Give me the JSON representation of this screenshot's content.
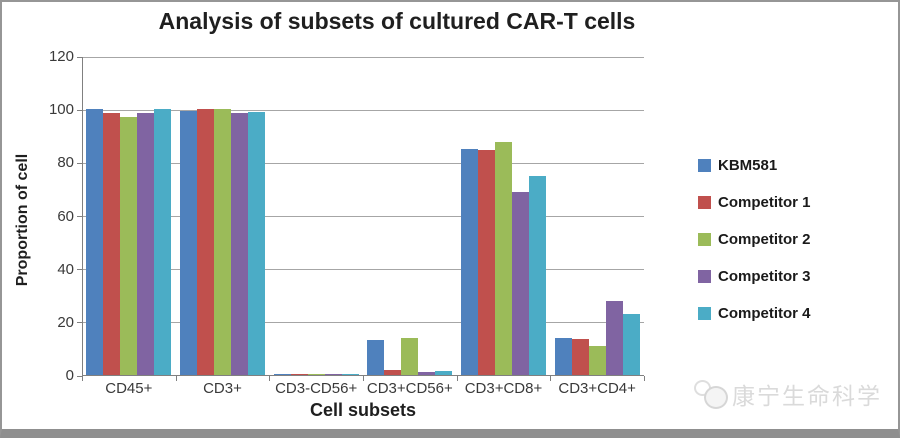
{
  "chart_data": {
    "type": "bar",
    "title": "Analysis of subsets of cultured CAR-T cells",
    "xlabel": "Cell subsets",
    "ylabel": "Proportion of cell",
    "ylim": [
      0,
      120
    ],
    "yticks": [
      0,
      20,
      40,
      60,
      80,
      100,
      120
    ],
    "grid": true,
    "legend_position": "right",
    "categories": [
      "CD45+",
      "CD3+",
      "CD3-CD56+",
      "CD3+CD56+",
      "CD3+CD8+",
      "CD3+CD4+"
    ],
    "series": [
      {
        "name": "KBM581",
        "color": "#4F81BD",
        "values": [
          100,
          99.3,
          0.4,
          13,
          85,
          14
        ]
      },
      {
        "name": "Competitor 1",
        "color": "#C0504D",
        "values": [
          98.5,
          100,
          0.4,
          2,
          84.5,
          13.7
        ]
      },
      {
        "name": "Competitor 2",
        "color": "#9BBB59",
        "values": [
          97,
          100,
          0.5,
          14,
          87.5,
          11
        ]
      },
      {
        "name": "Competitor 3",
        "color": "#8064A2",
        "values": [
          98.7,
          98.4,
          0.5,
          1,
          69,
          28
        ]
      },
      {
        "name": "Competitor 4",
        "color": "#4BACC6",
        "values": [
          100,
          99,
          0.5,
          1.5,
          75,
          23
        ]
      }
    ]
  },
  "colors": {
    "gridline": "#a6a6a6",
    "axis": "#808080",
    "frame_border": "#969696",
    "bottom_strip": "#8f8f8f"
  },
  "watermark": {
    "text": "康宁生命科学"
  }
}
